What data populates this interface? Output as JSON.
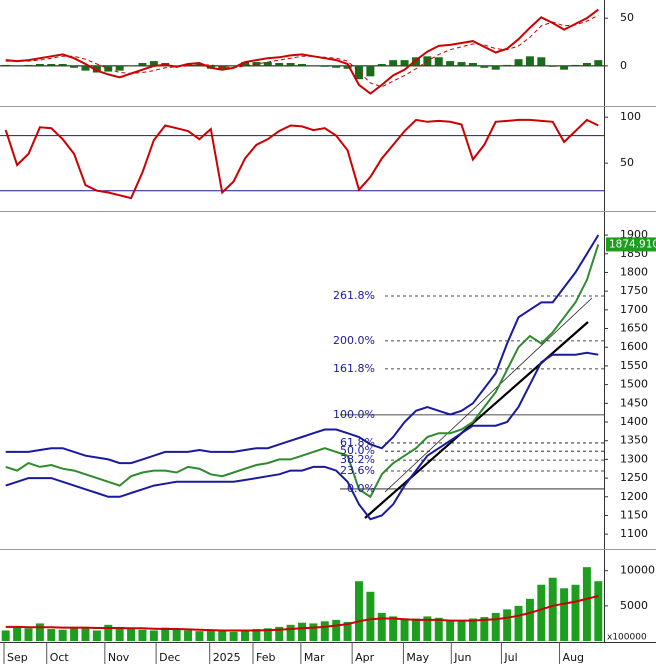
{
  "chart_data": [
    {
      "type": "line",
      "ylim": [
        -40,
        67
      ],
      "yticks": [
        0,
        50
      ],
      "levels": [
        0
      ],
      "level_color": "#000000",
      "series": [
        {
          "color": "#1a6b1a",
          "kind": "bar",
          "values": [
            1,
            0,
            1,
            2,
            2,
            2,
            -2,
            -5,
            -7,
            -6,
            -5,
            0,
            3,
            5,
            3,
            0,
            2,
            2,
            -3,
            -3,
            0,
            4,
            4,
            4,
            3,
            3,
            2,
            0,
            -1,
            -2,
            -3,
            -14,
            -11,
            2,
            6,
            6,
            9,
            10,
            9,
            5,
            4,
            3,
            -2,
            -4,
            1,
            7,
            10,
            9,
            -1,
            -4,
            1,
            3,
            6
          ]
        },
        {
          "color": "#cc0000",
          "dashed": true,
          "values": [
            5,
            5,
            5,
            6,
            8,
            10,
            10,
            7,
            2,
            -3,
            -7,
            -8,
            -7,
            -5,
            -2,
            -1,
            0,
            1,
            1,
            -1,
            -2,
            0,
            2,
            4,
            6,
            8,
            10,
            10,
            9,
            8,
            5,
            -6,
            -18,
            -22,
            -16,
            -10,
            -3,
            5,
            12,
            17,
            20,
            23,
            22,
            18,
            17,
            21,
            30,
            42,
            46,
            42,
            43,
            47,
            53
          ]
        },
        {
          "color": "#cc0000",
          "values": [
            6,
            5,
            6,
            8,
            10,
            12,
            8,
            2,
            -5,
            -9,
            -12,
            -8,
            -4,
            0,
            1,
            -1,
            2,
            3,
            -2,
            -4,
            -2,
            4,
            6,
            8,
            9,
            11,
            12,
            10,
            8,
            6,
            2,
            -20,
            -29,
            -20,
            -10,
            -4,
            6,
            15,
            21,
            22,
            24,
            26,
            20,
            14,
            18,
            28,
            40,
            51,
            45,
            38,
            44,
            50,
            59
          ]
        }
      ]
    },
    {
      "type": "line",
      "ylim": [
        -1,
        110
      ],
      "yticks": [
        50,
        100
      ],
      "levels": [
        20,
        80
      ],
      "level_color": "#1a1a8a",
      "series": [
        {
          "color": "#cc0000",
          "values": [
            86,
            48,
            60,
            89,
            88,
            76,
            60,
            26,
            20,
            18,
            15,
            12,
            40,
            75,
            91,
            88,
            85,
            76,
            87,
            18,
            30,
            55,
            70,
            76,
            85,
            91,
            90,
            86,
            88,
            80,
            64,
            21,
            35,
            55,
            70,
            85,
            97,
            95,
            96,
            95,
            92,
            54,
            70,
            95,
            96,
            97,
            97,
            96,
            95,
            73,
            85,
            97,
            91
          ]
        }
      ]
    },
    {
      "type": "line",
      "ylim": [
        1063,
        1959
      ],
      "yticks": [
        1100,
        1150,
        1200,
        1250,
        1300,
        1350,
        1400,
        1450,
        1500,
        1550,
        1600,
        1650,
        1700,
        1750,
        1800,
        1850,
        1900
      ],
      "series": [
        {
          "color": "#1a1aa0",
          "values": [
            1320,
            1320,
            1320,
            1325,
            1330,
            1330,
            1320,
            1310,
            1305,
            1300,
            1290,
            1290,
            1300,
            1310,
            1320,
            1320,
            1320,
            1325,
            1320,
            1320,
            1320,
            1325,
            1330,
            1330,
            1340,
            1350,
            1360,
            1370,
            1380,
            1380,
            1370,
            1360,
            1340,
            1330,
            1360,
            1400,
            1430,
            1440,
            1430,
            1420,
            1430,
            1450,
            1490,
            1530,
            1610,
            1680,
            1700,
            1720,
            1720,
            1760,
            1800,
            1850,
            1900
          ]
        },
        {
          "color": "#1a1aa0",
          "values": [
            1230,
            1240,
            1250,
            1250,
            1250,
            1240,
            1230,
            1220,
            1210,
            1200,
            1200,
            1210,
            1220,
            1230,
            1235,
            1240,
            1240,
            1240,
            1240,
            1240,
            1240,
            1245,
            1250,
            1255,
            1260,
            1270,
            1270,
            1280,
            1280,
            1270,
            1240,
            1180,
            1140,
            1150,
            1180,
            1230,
            1270,
            1310,
            1330,
            1350,
            1370,
            1390,
            1390,
            1390,
            1400,
            1440,
            1500,
            1560,
            1580,
            1580,
            1580,
            1585,
            1580
          ]
        },
        {
          "color": "#2e8b2e",
          "label_color": "#1e9e1e",
          "values": [
            1280,
            1270,
            1290,
            1280,
            1285,
            1275,
            1270,
            1260,
            1250,
            1240,
            1230,
            1255,
            1265,
            1270,
            1270,
            1265,
            1280,
            1275,
            1260,
            1255,
            1265,
            1275,
            1285,
            1290,
            1300,
            1300,
            1310,
            1320,
            1330,
            1320,
            1310,
            1220,
            1200,
            1260,
            1290,
            1310,
            1330,
            1360,
            1370,
            1370,
            1380,
            1400,
            1440,
            1480,
            1540,
            1600,
            1630,
            1610,
            1640,
            1680,
            1720,
            1780,
            1874.91
          ],
          "value_labels": [
            null,
            null,
            null,
            null,
            null,
            null,
            null,
            null,
            null,
            null,
            null,
            null,
            null,
            null,
            null,
            null,
            null,
            null,
            null,
            null,
            null,
            null,
            null,
            null,
            null,
            null,
            null,
            null,
            null,
            null,
            null,
            null,
            null,
            null,
            null,
            null,
            null,
            null,
            null,
            null,
            null,
            null,
            null,
            null,
            null,
            null,
            null,
            null,
            null,
            null,
            null,
            null,
            "1874.910"
          ]
        }
      ],
      "fib_levels": [
        {
          "label": "261.8%",
          "value": 1737,
          "style": "dashed"
        },
        {
          "label": "200.0%",
          "value": 1617,
          "style": "dashed"
        },
        {
          "label": "161.8%",
          "value": 1542,
          "style": "dashed"
        },
        {
          "label": "100.0%",
          "value": 1419,
          "style": "solid"
        },
        {
          "label": "61.8%",
          "value": 1344,
          "style": "dashed"
        },
        {
          "label": "50.0%",
          "value": 1322,
          "style": "dashed"
        },
        {
          "label": "38.2%",
          "value": 1298,
          "style": "dashed"
        },
        {
          "label": "23.6%",
          "value": 1269,
          "style": "dashed"
        },
        {
          "label": "0.0%",
          "value": 1221,
          "style": "solid"
        }
      ]
    },
    {
      "type": "bar",
      "ylim": [
        0,
        12800
      ],
      "yticks": [
        5000,
        10000
      ],
      "y_unit": "x100000",
      "xlim": [
        0,
        53
      ],
      "xticks": [
        {
          "value": 0.35,
          "label": "Sep"
        },
        {
          "value": 4.1,
          "label": "Oct"
        },
        {
          "value": 9.2,
          "label": "Nov"
        },
        {
          "value": 13.7,
          "label": "Dec"
        },
        {
          "value": 18.4,
          "label": "2025"
        },
        {
          "value": 22.2,
          "label": "Feb"
        },
        {
          "value": 26.4,
          "label": "Mar"
        },
        {
          "value": 30.9,
          "label": "Apr"
        },
        {
          "value": 35.4,
          "label": "May"
        },
        {
          "value": 39.6,
          "label": "Jun"
        },
        {
          "value": 44,
          "label": "Jul"
        },
        {
          "value": 49.1,
          "label": "Aug"
        }
      ],
      "series": [
        {
          "color": "#1e9e1e",
          "kind": "bar",
          "values": [
            1500,
            2000,
            1800,
            2500,
            1700,
            1600,
            2000,
            1800,
            1500,
            2300,
            2000,
            1800,
            1600,
            1500,
            1900,
            1700,
            1500,
            1400,
            1600,
            1400,
            1300,
            1500,
            1700,
            1800,
            2000,
            2300,
            2600,
            2500,
            2800,
            3000,
            2700,
            8500,
            7000,
            4000,
            3500,
            3000,
            3200,
            3500,
            3300,
            3000,
            2800,
            3200,
            3400,
            4000,
            4500,
            5000,
            6000,
            8000,
            9000,
            7500,
            8000,
            10500,
            8500
          ]
        },
        {
          "color": "#cc0000",
          "values": [
            2000,
            2000,
            1950,
            1950,
            1950,
            1900,
            1900,
            1900,
            1850,
            1850,
            1850,
            1800,
            1800,
            1750,
            1700,
            1700,
            1650,
            1600,
            1550,
            1500,
            1500,
            1500,
            1500,
            1550,
            1600,
            1700,
            1800,
            1900,
            2000,
            2200,
            2400,
            2800,
            3100,
            3200,
            3200,
            3100,
            3000,
            3000,
            3000,
            2900,
            2900,
            2900,
            3000,
            3100,
            3300,
            3600,
            4000,
            4500,
            5000,
            5300,
            5600,
            6000,
            6400
          ]
        }
      ]
    }
  ]
}
